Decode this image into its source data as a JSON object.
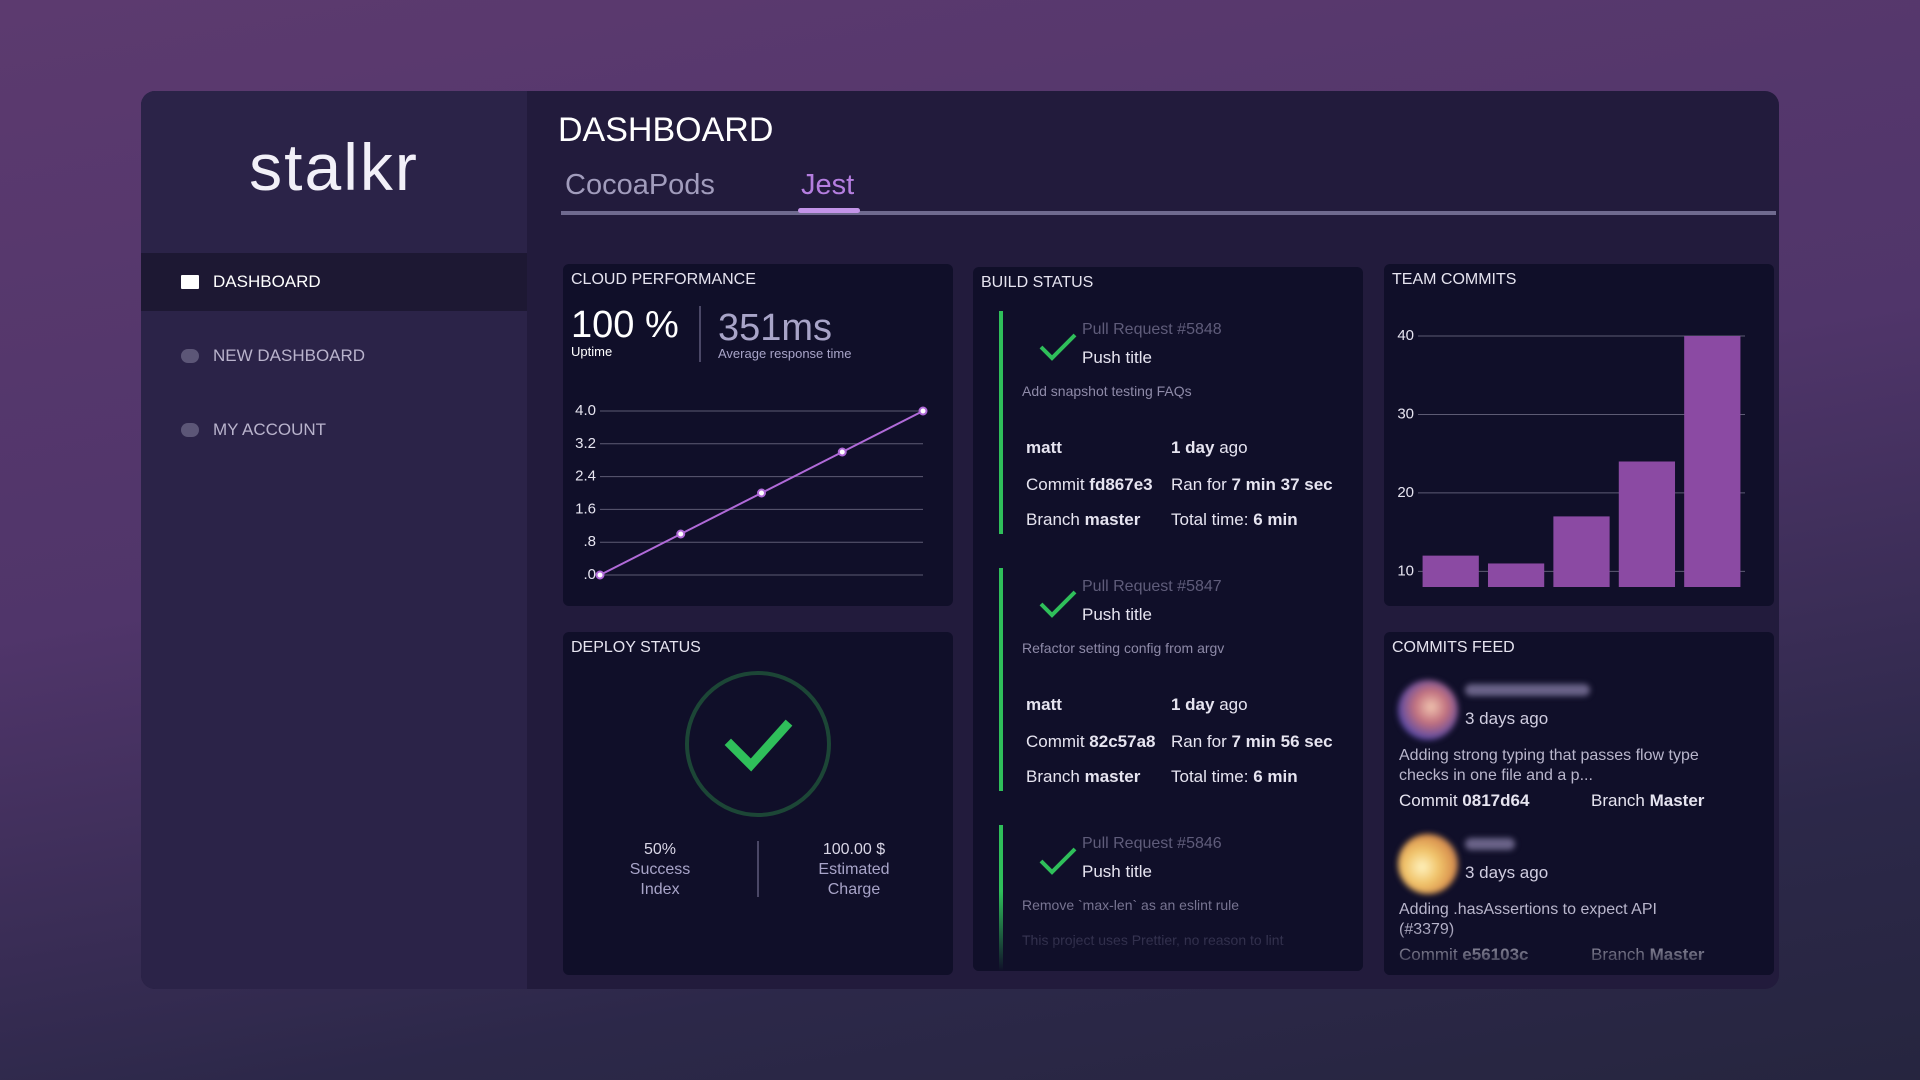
{
  "logo": "stalkr",
  "nav": [
    "DASHBOARD",
    "NEW DASHBOARD",
    "MY ACCOUNT"
  ],
  "header": {
    "title": "DASHBOARD"
  },
  "tabs": [
    "CocoaPods",
    "Jest"
  ],
  "chart_data": [
    {
      "type": "line",
      "title": "CLOUD PERFORMANCE",
      "categories": [
        null,
        null,
        null,
        null,
        null
      ],
      "values": [
        0,
        1,
        2,
        3,
        4
      ],
      "color": "#b06ad8",
      "ylim": [
        0,
        4
      ],
      "yticks": [
        {
          "value": 4,
          "label": "4.0"
        },
        {
          "value": 3.2,
          "label": "3.2"
        },
        {
          "value": 2.4,
          "label": "2.4"
        },
        {
          "value": 1.6,
          "label": "1.6"
        },
        {
          "value": 0.8,
          "label": ".8"
        },
        {
          "value": 0,
          "label": ".0"
        }
      ],
      "grid": true
    },
    {
      "type": "bar",
      "title": "TEAM COMMITS",
      "categories": [
        null,
        null,
        null,
        null,
        null
      ],
      "values": [
        12,
        11,
        17,
        24,
        40
      ],
      "color": "#8b4aa3",
      "ylim": [
        8,
        40
      ],
      "yticks": [
        10,
        20,
        30,
        40
      ],
      "grid": true
    }
  ],
  "cloud_performance": {
    "uptime": "100 %",
    "uptime_label": "Uptime",
    "response": "351ms",
    "response_label": "Average response time"
  },
  "deploy_status": {
    "title": "DEPLOY STATUS",
    "success": "50%",
    "success_label": "Success Index",
    "charge": "100.00 $",
    "charge_label": "Estimated Charge"
  },
  "build_status": {
    "title": "BUILD STATUS",
    "builds": [
      {
        "pull_request": "Pull Request #5848",
        "push_title": "Push title",
        "description": "Add snapshot testing FAQs",
        "author": "matt",
        "age": "1 day",
        "age_suffix": "ago",
        "commit_label": "Commit",
        "commit": "fd867e3",
        "ran_label": "Ran for",
        "ran": "7 min 37 sec",
        "branch_label": "Branch",
        "branch": "master",
        "total_label": "Total time:",
        "total": "6 min"
      },
      {
        "pull_request": "Pull Request #5847",
        "push_title": "Push title",
        "description": "Refactor setting config from argv",
        "author": "matt",
        "age": "1 day",
        "age_suffix": "ago",
        "commit_label": "Commit",
        "commit": "82c57a8",
        "ran_label": "Ran for",
        "ran": "7 min 56 sec",
        "branch_label": "Branch",
        "branch": "master",
        "total_label": "Total time:",
        "total": "6 min"
      },
      {
        "pull_request": "Pull Request #5846",
        "push_title": "Push title",
        "description": "Remove `max-len` as an eslint rule",
        "note": "This project uses Prettier, no reason to lint"
      }
    ]
  },
  "commits_feed": {
    "title": "COMMITS FEED",
    "commits": [
      {
        "age": "3 days ago",
        "message": "Adding strong typing that passes flow type checks in one file and a p...",
        "commit_label": "Commit",
        "commit": "0817d64",
        "branch_label": "Branch",
        "branch": "Master"
      },
      {
        "age": "3 days ago",
        "message": "Adding .hasAssertions to expect API (#3379)",
        "commit_label": "Commit",
        "commit": "e56103c",
        "branch_label": "Branch",
        "branch": "Master"
      }
    ]
  }
}
